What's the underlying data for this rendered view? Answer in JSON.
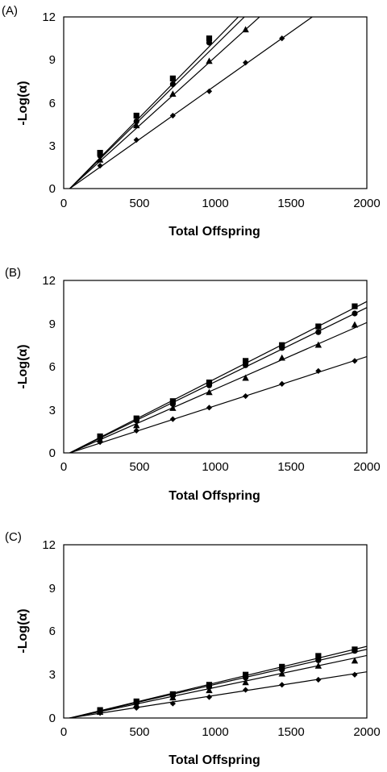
{
  "chart_data": [
    {
      "type": "scatter",
      "panel_label": "(A)",
      "xlabel": "Total Offspring",
      "ylabel": "-Log(α)",
      "xlim": [
        0,
        2000
      ],
      "ylim": [
        0,
        12
      ],
      "x_ticks": [
        "0",
        "500",
        "1000",
        "1500",
        "2000"
      ],
      "y_ticks": [
        "0",
        "3",
        "6",
        "9",
        "12"
      ],
      "grid": false,
      "legend": "none",
      "series": [
        {
          "marker": "square",
          "x": [
            240,
            480,
            720,
            960
          ],
          "y": [
            2.5,
            5.1,
            7.7,
            10.5
          ],
          "fit_slope": 0.01079,
          "fit_intercept": -0.43
        },
        {
          "marker": "circle",
          "x": [
            240,
            480,
            720,
            960
          ],
          "y": [
            2.3,
            4.7,
            7.3,
            10.2
          ],
          "fit_slope": 0.01042,
          "fit_intercept": -0.42
        },
        {
          "marker": "triangle",
          "x": [
            240,
            480,
            720,
            960,
            1200
          ],
          "y": [
            2.0,
            4.4,
            6.6,
            8.9,
            11.1
          ],
          "fit_slope": 0.00958,
          "fit_intercept": -0.38
        },
        {
          "marker": "diamond",
          "x": [
            240,
            480,
            720,
            960,
            1200,
            1440
          ],
          "y": [
            1.6,
            3.4,
            5.1,
            6.8,
            8.8,
            10.5
          ],
          "fit_slope": 0.0075,
          "fit_intercept": -0.3
        }
      ]
    },
    {
      "type": "scatter",
      "panel_label": "(B)",
      "xlabel": "Total Offspring",
      "ylabel": "-Log(α)",
      "xlim": [
        0,
        2000
      ],
      "ylim": [
        0,
        12
      ],
      "x_ticks": [
        "0",
        "500",
        "1000",
        "1500",
        "2000"
      ],
      "y_ticks": [
        "0",
        "3",
        "6",
        "9",
        "12"
      ],
      "grid": false,
      "legend": "none",
      "series": [
        {
          "marker": "square",
          "x": [
            240,
            480,
            720,
            960,
            1200,
            1440,
            1680,
            1920
          ],
          "y": [
            1.15,
            2.4,
            3.6,
            4.9,
            6.4,
            7.5,
            8.8,
            10.2
          ],
          "fit_slope": 0.00537,
          "fit_intercept": -0.21
        },
        {
          "marker": "circle",
          "x": [
            240,
            480,
            720,
            960,
            1200,
            1440,
            1680,
            1920
          ],
          "y": [
            1.05,
            2.25,
            3.4,
            4.7,
            6.1,
            7.3,
            8.4,
            9.7
          ],
          "fit_slope": 0.00516,
          "fit_intercept": -0.21
        },
        {
          "marker": "triangle",
          "x": [
            240,
            480,
            720,
            960,
            1200,
            1440,
            1680,
            1920
          ],
          "y": [
            0.9,
            1.9,
            3.1,
            4.2,
            5.2,
            6.6,
            7.5,
            8.9
          ],
          "fit_slope": 0.00463,
          "fit_intercept": -0.19
        },
        {
          "marker": "diamond",
          "x": [
            240,
            480,
            720,
            960,
            1200,
            1440,
            1680,
            1920
          ],
          "y": [
            0.75,
            1.55,
            2.35,
            3.15,
            3.95,
            4.8,
            5.7,
            6.4
          ],
          "fit_slope": 0.00342,
          "fit_intercept": -0.14
        }
      ]
    },
    {
      "type": "scatter",
      "panel_label": "(C)",
      "xlabel": "Total Offspring",
      "ylabel": "-Log(α)",
      "xlim": [
        0,
        2000
      ],
      "ylim": [
        0,
        12
      ],
      "x_ticks": [
        "0",
        "500",
        "1000",
        "1500",
        "2000"
      ],
      "y_ticks": [
        "0",
        "3",
        "6",
        "9",
        "12"
      ],
      "grid": false,
      "legend": "none",
      "series": [
        {
          "marker": "square",
          "x": [
            240,
            480,
            720,
            960,
            1200,
            1440,
            1680,
            1920
          ],
          "y": [
            0.55,
            1.15,
            1.65,
            2.3,
            3.0,
            3.55,
            4.3,
            4.75
          ],
          "fit_slope": 0.00253,
          "fit_intercept": -0.1
        },
        {
          "marker": "circle",
          "x": [
            240,
            480,
            720,
            960,
            1200,
            1440,
            1680,
            1920
          ],
          "y": [
            0.5,
            1.05,
            1.55,
            2.15,
            2.8,
            3.35,
            4.0,
            4.65
          ],
          "fit_slope": 0.00243,
          "fit_intercept": -0.1
        },
        {
          "marker": "triangle",
          "x": [
            240,
            480,
            720,
            960,
            1200,
            1440,
            1680,
            1920
          ],
          "y": [
            0.4,
            0.9,
            1.4,
            1.9,
            2.45,
            3.05,
            3.6,
            3.95
          ],
          "fit_slope": 0.00221,
          "fit_intercept": -0.09
        },
        {
          "marker": "diamond",
          "x": [
            240,
            480,
            720,
            960,
            1200,
            1440,
            1680,
            1920
          ],
          "y": [
            0.35,
            0.7,
            1.0,
            1.45,
            1.95,
            2.3,
            2.65,
            3.0
          ],
          "fit_slope": 0.00163,
          "fit_intercept": -0.06
        }
      ]
    }
  ]
}
